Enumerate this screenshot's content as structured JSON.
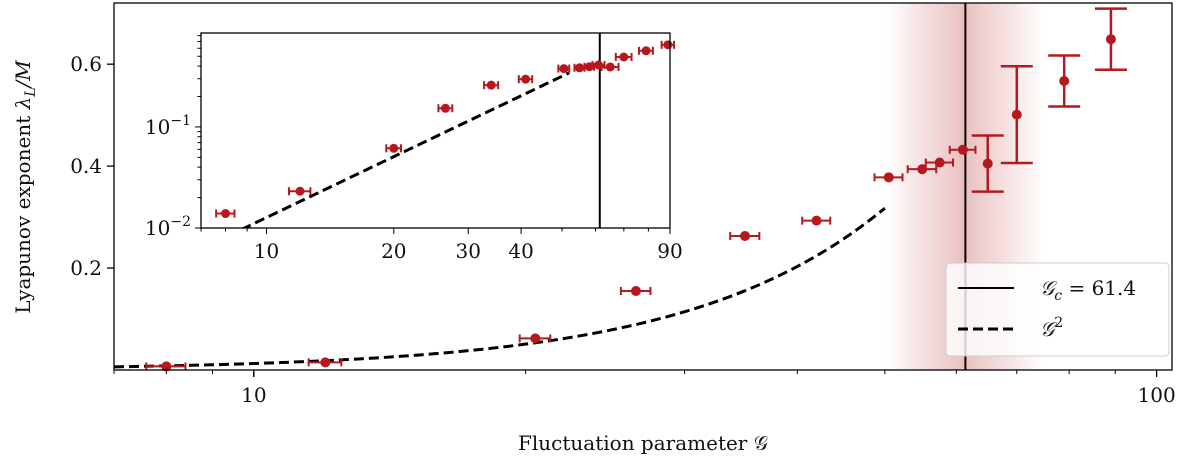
{
  "chart_data": [
    {
      "id": "main",
      "type": "scatter",
      "xlabel": "Fluctuation parameter 𝒢",
      "ylabel_main": "Lyapunov exponent ",
      "ylabel_sym": "λ",
      "ylabel_sub": "L",
      "ylabel_tail": "/M",
      "xscale": "log",
      "xlim": [
        7,
        104
      ],
      "ylim": [
        0.0,
        0.72
      ],
      "xticks_major": [
        10,
        100
      ],
      "xtick_labels": [
        "10",
        "100"
      ],
      "yticks": [
        0.2,
        0.4,
        0.6
      ],
      "ytick_labels": [
        "0.2",
        "0.4",
        "0.6"
      ],
      "error_color": "#b5191f",
      "points": [
        {
          "x": 8.0,
          "y": 0.007,
          "xerr": 0.4,
          "yerr": 0.0
        },
        {
          "x": 12.0,
          "y": 0.015,
          "xerr": 0.5,
          "yerr": 0.0
        },
        {
          "x": 20.5,
          "y": 0.062,
          "xerr": 0.8,
          "yerr": 0.0
        },
        {
          "x": 26.5,
          "y": 0.155,
          "xerr": 1.0,
          "yerr": 0.0
        },
        {
          "x": 35.0,
          "y": 0.263,
          "xerr": 1.3,
          "yerr": 0.0
        },
        {
          "x": 42.0,
          "y": 0.293,
          "xerr": 1.5,
          "yerr": 0.0
        },
        {
          "x": 50.5,
          "y": 0.378,
          "xerr": 1.8,
          "yerr": 0.0
        },
        {
          "x": 55.0,
          "y": 0.394,
          "xerr": 2.0,
          "yerr": 0.0
        },
        {
          "x": 57.5,
          "y": 0.407,
          "xerr": 2.0,
          "yerr": 0.0
        },
        {
          "x": 61.0,
          "y": 0.432,
          "xerr": 2.0,
          "yerr": 0.0
        },
        {
          "x": 65.0,
          "y": 0.405,
          "xerr": 0.0,
          "yerr": 0.055
        },
        {
          "x": 70.0,
          "y": 0.501,
          "xerr": 0.0,
          "yerr": 0.095
        },
        {
          "x": 79.0,
          "y": 0.567,
          "xerr": 0.0,
          "yerr": 0.05
        },
        {
          "x": 89.0,
          "y": 0.649,
          "xerr": 0.0,
          "yerr": 0.06
        }
      ],
      "fit_curve": {
        "coef": 0.000127,
        "power": 2,
        "x_min": 7.0,
        "x_max": 50.0
      },
      "critical_x": 61.4,
      "shade_range": [
        50.0,
        75.0
      ],
      "shade_color": "#d88d8d",
      "legend": {
        "placement": "bottom-right",
        "entries": [
          {
            "style": "solid",
            "label_sym": "𝒢",
            "label_sub": "c",
            "label_tail": " = 61.4"
          },
          {
            "style": "dashed",
            "label_sym": "𝒢",
            "label_sup": "2"
          }
        ]
      }
    },
    {
      "id": "inset",
      "type": "scatter",
      "xscale": "log",
      "yscale": "log",
      "xlim": [
        7,
        90
      ],
      "ylim": [
        0.01,
        0.85
      ],
      "xtick_values": [
        10,
        20,
        30,
        40,
        90
      ],
      "xtick_labels": [
        "10",
        "20",
        "30",
        "40",
        "90"
      ],
      "ytick_values": [
        0.01,
        0.1
      ],
      "ytick_base": "10",
      "ytick_exps": [
        "−2",
        "−1"
      ],
      "points": [
        {
          "x": 8.0,
          "y": 0.0139,
          "xerr": 0.4
        },
        {
          "x": 12.0,
          "y": 0.0231,
          "xerr": 0.7
        },
        {
          "x": 20.0,
          "y": 0.0615,
          "xerr": 0.8
        },
        {
          "x": 26.5,
          "y": 0.153,
          "xerr": 1.0
        },
        {
          "x": 34.0,
          "y": 0.259,
          "xerr": 1.3
        },
        {
          "x": 41.0,
          "y": 0.297,
          "xerr": 1.5
        },
        {
          "x": 50.5,
          "y": 0.378,
          "xerr": 1.5
        },
        {
          "x": 55.0,
          "y": 0.385,
          "xerr": 1.5
        },
        {
          "x": 58.0,
          "y": 0.394,
          "xerr": 1.5
        },
        {
          "x": 61.0,
          "y": 0.41,
          "xerr": 2.0
        },
        {
          "x": 65.0,
          "y": 0.392,
          "xerr": 3.0
        },
        {
          "x": 70.0,
          "y": 0.492,
          "xerr": 3.0
        },
        {
          "x": 79.0,
          "y": 0.567,
          "xerr": 3.0
        },
        {
          "x": 89.0,
          "y": 0.649,
          "xerr": 3.0
        }
      ],
      "fit_curve": {
        "coef": 0.000127,
        "power": 2,
        "x_min": 7.0,
        "x_max": 52.0
      },
      "critical_x": 61.4
    }
  ]
}
